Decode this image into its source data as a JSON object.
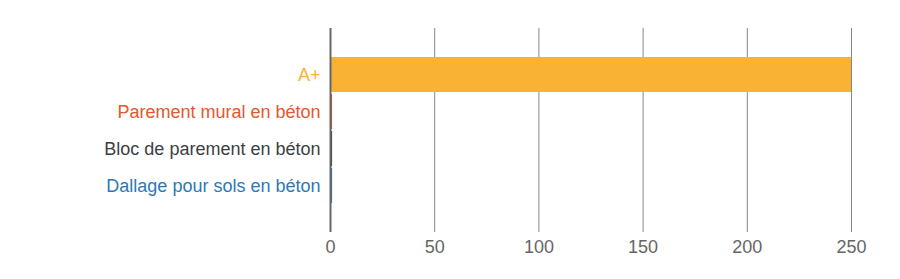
{
  "chart_data": {
    "type": "bar",
    "orientation": "horizontal",
    "categories": [
      "A+",
      "Parement mural en béton",
      "Bloc de parement en béton",
      "Dallage pour sols en béton"
    ],
    "values": [
      250,
      1,
      1,
      1
    ],
    "colors": [
      "#f9b233",
      "#e4572e",
      "#3a3f44",
      "#2a7ab8"
    ],
    "xlim": [
      0,
      250
    ],
    "xticks": [
      0,
      50,
      100,
      150,
      200,
      250
    ],
    "grid": true
  }
}
